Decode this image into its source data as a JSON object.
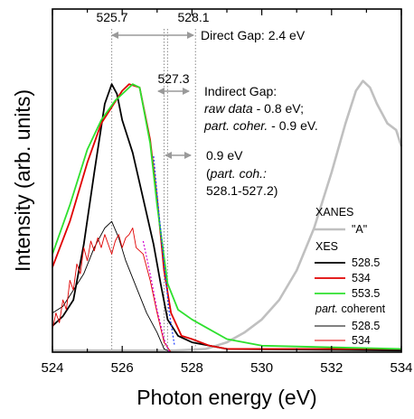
{
  "chart_data": {
    "type": "line",
    "xlabel": "Photon energy (eV)",
    "ylabel": "Intensity (arb. units)",
    "xlim": [
      524,
      534
    ],
    "ylim": [
      0,
      1.05
    ],
    "xticks": [
      "524",
      "526",
      "528",
      "530",
      "532",
      "534"
    ],
    "vlines": [
      525.7,
      527.2,
      527.3,
      528.1
    ],
    "annotations": {
      "v1": "525.7",
      "v2": "528.1",
      "v3": "527.3",
      "direct_gap": "Direct Gap: 2.4 eV",
      "indirect_title": "Indirect Gap:",
      "indirect_raw": "raw data",
      "indirect_raw_val": " - 0.8 eV;",
      "indirect_pc": "part. coher.",
      "indirect_pc_val": " - 0.9 eV.",
      "gap_value": "0.9 eV",
      "gap_note_1": "(part. coh.:",
      "gap_note_2": "528.1-527.2)"
    },
    "legend": {
      "xanes_header": "XANES",
      "xanes_label": "\"A\"",
      "xes_header": "XES",
      "xes_labels": [
        "528.5",
        "534",
        "553.5"
      ],
      "pc_header": "part. coherent",
      "pc_labels": [
        "528.5",
        "534"
      ]
    },
    "series": [
      {
        "name": "XANES \"A\"",
        "color": "#c0c0c0",
        "points": [
          [
            524.0,
            0.005
          ],
          [
            527.5,
            0.005
          ],
          [
            528.4,
            0.01
          ],
          [
            529.0,
            0.03
          ],
          [
            529.5,
            0.06
          ],
          [
            530.0,
            0.1
          ],
          [
            530.5,
            0.16
          ],
          [
            531.0,
            0.25
          ],
          [
            531.5,
            0.38
          ],
          [
            532.0,
            0.55
          ],
          [
            532.4,
            0.7
          ],
          [
            532.7,
            0.8
          ],
          [
            532.9,
            0.83
          ],
          [
            533.1,
            0.81
          ],
          [
            533.3,
            0.76
          ],
          [
            533.6,
            0.7
          ],
          [
            533.85,
            0.68
          ],
          [
            534.0,
            0.63
          ]
        ]
      },
      {
        "name": "XES 528.5",
        "color": "#000000",
        "points": [
          [
            524.0,
            0.08
          ],
          [
            524.3,
            0.11
          ],
          [
            524.6,
            0.16
          ],
          [
            524.9,
            0.33
          ],
          [
            525.2,
            0.55
          ],
          [
            525.5,
            0.76
          ],
          [
            525.7,
            0.82
          ],
          [
            525.85,
            0.79
          ],
          [
            526.0,
            0.71
          ],
          [
            526.3,
            0.61
          ],
          [
            526.6,
            0.47
          ],
          [
            526.9,
            0.33
          ],
          [
            527.1,
            0.21
          ],
          [
            527.3,
            0.1
          ],
          [
            527.6,
            0.05
          ],
          [
            528.0,
            0.03
          ],
          [
            528.5,
            0.02
          ],
          [
            529.0,
            0.01
          ],
          [
            534.0,
            0.005
          ]
        ]
      },
      {
        "name": "XES 534",
        "color": "#e00000",
        "points": [
          [
            524.0,
            0.26
          ],
          [
            524.5,
            0.4
          ],
          [
            525.0,
            0.58
          ],
          [
            525.4,
            0.7
          ],
          [
            525.7,
            0.75
          ],
          [
            526.0,
            0.8
          ],
          [
            526.2,
            0.82
          ],
          [
            526.5,
            0.81
          ],
          [
            526.8,
            0.65
          ],
          [
            527.0,
            0.47
          ],
          [
            527.2,
            0.25
          ],
          [
            527.4,
            0.12
          ],
          [
            527.7,
            0.05
          ],
          [
            528.0,
            0.04
          ],
          [
            528.5,
            0.02
          ],
          [
            529.0,
            0.01
          ],
          [
            534.0,
            0.01
          ]
        ]
      },
      {
        "name": "XES 553.5",
        "color": "#2ee02e",
        "points": [
          [
            524.0,
            0.3
          ],
          [
            524.5,
            0.45
          ],
          [
            525.0,
            0.62
          ],
          [
            525.4,
            0.71
          ],
          [
            525.8,
            0.77
          ],
          [
            526.1,
            0.8
          ],
          [
            526.3,
            0.82
          ],
          [
            526.5,
            0.81
          ],
          [
            526.8,
            0.64
          ],
          [
            527.0,
            0.45
          ],
          [
            527.3,
            0.21
          ],
          [
            527.6,
            0.13
          ],
          [
            528.0,
            0.1
          ],
          [
            528.5,
            0.07
          ],
          [
            529.0,
            0.04
          ],
          [
            529.5,
            0.03
          ],
          [
            530.0,
            0.02
          ],
          [
            534.0,
            0.01
          ]
        ]
      },
      {
        "name": "part. coherent 528.5",
        "color": "#000000",
        "points": [
          [
            524.0,
            0.12
          ],
          [
            524.3,
            0.14
          ],
          [
            524.6,
            0.19
          ],
          [
            524.9,
            0.24
          ],
          [
            525.2,
            0.32
          ],
          [
            525.5,
            0.38
          ],
          [
            525.7,
            0.4
          ],
          [
            525.9,
            0.35
          ],
          [
            526.1,
            0.28
          ],
          [
            526.4,
            0.2
          ],
          [
            526.7,
            0.12
          ],
          [
            527.0,
            0.06
          ],
          [
            527.2,
            0.01
          ],
          [
            527.4,
            0.0
          ]
        ]
      },
      {
        "name": "part. coherent 534",
        "color": "#e00000",
        "points": [
          [
            524.0,
            0.07
          ],
          [
            524.1,
            0.12
          ],
          [
            524.2,
            0.09
          ],
          [
            524.3,
            0.16
          ],
          [
            524.4,
            0.13
          ],
          [
            524.5,
            0.22
          ],
          [
            524.6,
            0.19
          ],
          [
            524.7,
            0.27
          ],
          [
            524.8,
            0.24
          ],
          [
            524.9,
            0.32
          ],
          [
            525.0,
            0.28
          ],
          [
            525.1,
            0.34
          ],
          [
            525.2,
            0.31
          ],
          [
            525.3,
            0.35
          ],
          [
            525.4,
            0.32
          ],
          [
            525.5,
            0.36
          ],
          [
            525.6,
            0.33
          ],
          [
            525.7,
            0.3
          ],
          [
            525.8,
            0.34
          ],
          [
            525.9,
            0.36
          ],
          [
            526.0,
            0.32
          ],
          [
            526.1,
            0.35
          ],
          [
            526.2,
            0.36
          ],
          [
            526.3,
            0.38
          ],
          [
            526.4,
            0.32
          ],
          [
            526.6,
            0.3
          ],
          [
            526.8,
            0.22
          ],
          [
            527.0,
            0.12
          ],
          [
            527.2,
            0.03
          ],
          [
            527.4,
            0.0
          ]
        ]
      },
      {
        "name": "",
        "color": "#1a3cff",
        "dashed": true,
        "points": [
          [
            526.9,
            0.6
          ],
          [
            527.05,
            0.43
          ],
          [
            527.2,
            0.27
          ],
          [
            527.35,
            0.12
          ],
          [
            527.5,
            0.02
          ]
        ]
      },
      {
        "name": "",
        "color": "#d000d0",
        "dashed": true,
        "points": [
          [
            526.6,
            0.34
          ],
          [
            526.8,
            0.24
          ],
          [
            527.0,
            0.13
          ],
          [
            527.2,
            0.04
          ],
          [
            527.35,
            0.0
          ]
        ]
      }
    ]
  }
}
